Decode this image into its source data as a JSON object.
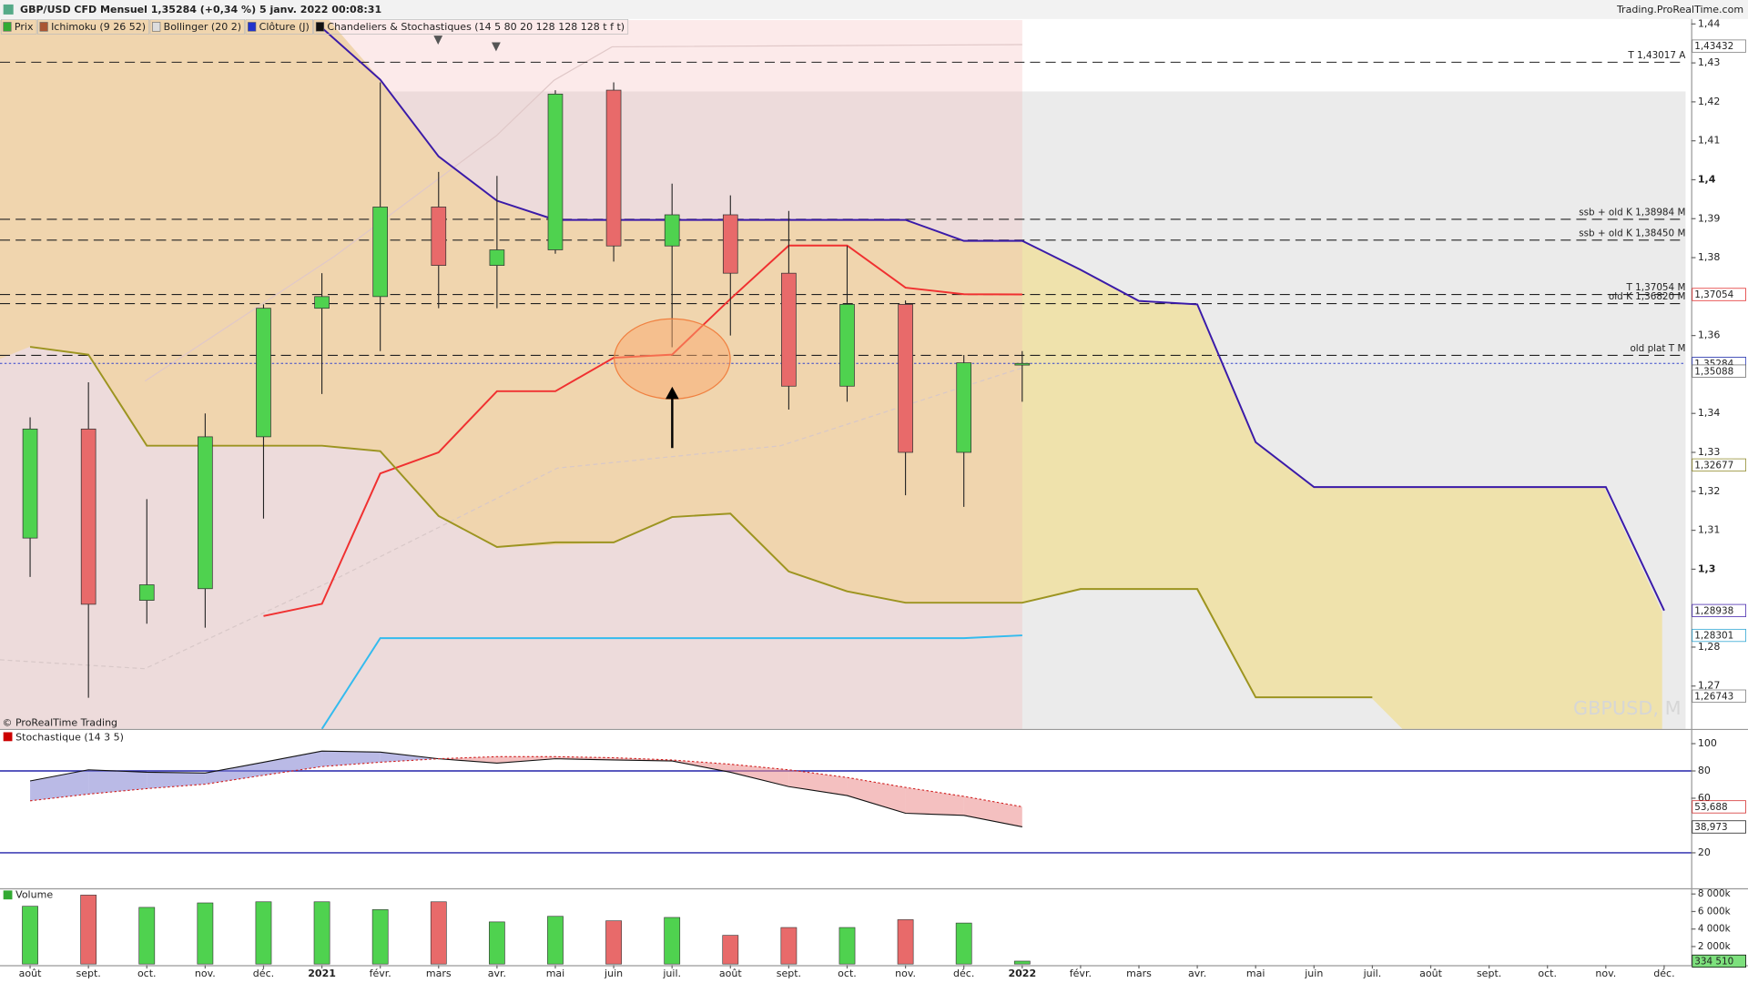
{
  "header": {
    "title": "GBP/USD CFD Mensuel 1,35284 (+0,34 %) 5 janv. 2022 00:08:31",
    "source": "Trading.ProRealTime.com",
    "legend": [
      {
        "label": "Prix",
        "color": "#3a3"
      },
      {
        "label": "Ichimoku (9 26 52)",
        "color": "#a53"
      },
      {
        "label": "Bollinger (20 2)",
        "color": "#ddd"
      },
      {
        "label": "Clôture (J)",
        "color": "#23c"
      },
      {
        "label": "Chandeliers & Stochastiques (14 5 80 20 128 128 128 t f t)",
        "color": "#111"
      }
    ]
  },
  "copyright": "© ProRealTime Trading",
  "watermark": "GBPUSD, M",
  "chart_data": [
    {
      "type": "candlestick",
      "categories": [
        "août",
        "sept.",
        "oct.",
        "nov.",
        "déc.",
        "2021",
        "févr.",
        "mars",
        "avr.",
        "mai",
        "juin",
        "juil.",
        "août",
        "sept.",
        "oct.",
        "nov.",
        "déc.",
        "2022",
        "févr.",
        "mars",
        "avr.",
        "mai",
        "juin",
        "juil.",
        "août",
        "sept.",
        "oct.",
        "nov.",
        "déc."
      ],
      "open": [
        1.308,
        1.336,
        1.292,
        1.295,
        1.334,
        1.367,
        1.37,
        1.393,
        1.378,
        1.382,
        1.423,
        1.383,
        1.391,
        1.376,
        1.347,
        1.368,
        1.33,
        1.3526,
        null,
        null,
        null,
        null,
        null,
        null,
        null,
        null,
        null,
        null,
        null
      ],
      "high": [
        1.339,
        1.348,
        1.318,
        1.34,
        1.368,
        1.376,
        1.425,
        1.402,
        1.401,
        1.423,
        1.425,
        1.399,
        1.396,
        1.392,
        1.383,
        1.369,
        1.355,
        1.356,
        null,
        null,
        null,
        null,
        null,
        null,
        null,
        null,
        null,
        null,
        null
      ],
      "low": [
        1.298,
        1.267,
        1.286,
        1.285,
        1.313,
        1.345,
        1.356,
        1.367,
        1.367,
        1.381,
        1.379,
        1.357,
        1.36,
        1.341,
        1.343,
        1.319,
        1.316,
        1.343,
        null,
        null,
        null,
        null,
        null,
        null,
        null,
        null,
        null,
        null,
        null
      ],
      "close": [
        1.336,
        1.291,
        1.296,
        1.334,
        1.367,
        1.37,
        1.393,
        1.378,
        1.382,
        1.422,
        1.383,
        1.391,
        1.376,
        1.347,
        1.368,
        1.33,
        1.353,
        1.35284,
        null,
        null,
        null,
        null,
        null,
        null,
        null,
        null,
        null,
        null,
        null
      ],
      "up_color": "#4fd24f",
      "down_color": "#e86a6a",
      "series": [
        {
          "color": "#3a1aa8",
          "values": [
            null,
            null,
            null,
            null,
            null,
            1.439,
            1.4257,
            1.406,
            1.3946,
            1.3897,
            1.3897,
            1.3897,
            1.3897,
            1.3897,
            1.3897,
            1.3897,
            1.3843,
            1.3843,
            1.3769,
            1.3689,
            1.368,
            1.3326,
            1.3211,
            1.3211,
            1.3211,
            1.3211,
            1.3211,
            1.3211,
            1.28938
          ]
        },
        {
          "color": "#f03030",
          "values": [
            null,
            null,
            null,
            null,
            1.288,
            1.2911,
            1.3246,
            1.33,
            1.3457,
            1.3457,
            1.3543,
            1.3551,
            1.3694,
            1.3831,
            1.3831,
            1.3723,
            1.3706,
            1.37054,
            null,
            null,
            null,
            null,
            null,
            null,
            null,
            null,
            null,
            null,
            null
          ]
        },
        {
          "color": "#9c9420",
          "values": [
            1.3571,
            1.3551,
            1.3317,
            1.3317,
            1.3317,
            1.3317,
            1.3303,
            1.3137,
            1.3057,
            1.3069,
            1.3069,
            1.3134,
            1.3143,
            1.2994,
            1.2943,
            1.2914,
            1.2914,
            1.2914,
            1.2949,
            1.2949,
            1.2949,
            1.2671,
            1.2671,
            1.2671,
            null,
            null,
            null,
            null,
            null
          ]
        },
        {
          "color": "#33bbee",
          "values": [
            null,
            null,
            null,
            null,
            null,
            1.259,
            1.2823,
            1.2823,
            1.2823,
            1.2823,
            1.2823,
            1.2823,
            1.2823,
            1.2823,
            1.2823,
            1.2823,
            1.2823,
            1.28301,
            null,
            null,
            null,
            null,
            null,
            null,
            null,
            null,
            null,
            null,
            null
          ]
        }
      ],
      "ylim": [
        1.259,
        1.441
      ],
      "yticks": [
        {
          "value": 1.44,
          "label": "1,44"
        },
        {
          "value": 1.43,
          "label": "1,43"
        },
        {
          "value": 1.42,
          "label": "1,42"
        },
        {
          "value": 1.41,
          "label": "1,41"
        },
        {
          "value": 1.4,
          "label": "1,4"
        },
        {
          "value": 1.39,
          "label": "1,39"
        },
        {
          "value": 1.38,
          "label": "1,38"
        },
        {
          "value": 1.36,
          "label": "1,36"
        },
        {
          "value": 1.34,
          "label": "1,34"
        },
        {
          "value": 1.33,
          "label": "1,33"
        },
        {
          "value": 1.32,
          "label": "1,32"
        },
        {
          "value": 1.31,
          "label": "1,31"
        },
        {
          "value": 1.3,
          "label": "1,3"
        },
        {
          "value": 1.28,
          "label": "1,28"
        },
        {
          "value": 1.27,
          "label": "1,27"
        }
      ],
      "levels": [
        {
          "value": 1.43017,
          "label": "T 1,43017 A"
        },
        {
          "value": 1.38984,
          "label": "ssb + old K 1,38984 M"
        },
        {
          "value": 1.3845,
          "label": "ssb + old K 1,38450 M"
        },
        {
          "value": 1.37054,
          "label": "T 1,37054 M"
        },
        {
          "value": 1.3682,
          "label": "old K 1,36820 M"
        },
        {
          "value": 1.3549,
          "label": "old plat T M"
        }
      ],
      "price_line": {
        "value": 1.35284,
        "color": "#3344cc"
      },
      "tags": [
        {
          "value": 1.43432,
          "label": "1,43432",
          "color": "#777"
        },
        {
          "value": 1.37054,
          "label": "1,37054",
          "color": "#e02020"
        },
        {
          "value": 1.35284,
          "label": "1,35284",
          "color": "#000",
          "background": "#f0d000"
        },
        {
          "value": 1.35284,
          "label": "1,35284",
          "color": "#3344cc"
        },
        {
          "value": 1.35088,
          "label": "1,35088",
          "color": "#666"
        },
        {
          "value": 1.32677,
          "label": "1,32677",
          "color": "#8a8420"
        },
        {
          "value": 1.28938,
          "label": "1,28938",
          "color": "#3a1aa8"
        },
        {
          "value": 1.28301,
          "label": "1,28301",
          "color": "#22a0d0"
        },
        {
          "value": 1.26743,
          "label": "1,26743",
          "color": "#777"
        }
      ]
    },
    {
      "type": "stochastic",
      "title": "Stochastique (14 3 5)",
      "series": [
        {
          "color": "#111",
          "values": [
            72.7,
            80.8,
            79,
            78.5,
            86.4,
            94.6,
            93.8,
            88.9,
            85.7,
            88.9,
            88,
            87.3,
            79,
            68.5,
            62,
            49,
            47.4,
            38.973,
            null,
            null,
            null,
            null,
            null,
            null,
            null,
            null,
            null,
            null,
            null
          ]
        },
        {
          "color": "#d02020",
          "dashed": true,
          "values": [
            58.1,
            63,
            67,
            70.3,
            76.8,
            83.2,
            86.4,
            88.9,
            90.5,
            90.5,
            89.7,
            88,
            84.9,
            80.8,
            75.2,
            67.9,
            61.4,
            53.688,
            null,
            null,
            null,
            null,
            null,
            null,
            null,
            null,
            null,
            null,
            null
          ]
        }
      ],
      "ylim": [
        -6,
        110
      ],
      "yticks": [
        100,
        80,
        60,
        20
      ],
      "levels": [
        80,
        20
      ],
      "level_color": "#2222aa",
      "tags": [
        {
          "value": 53.688,
          "label": "53,688",
          "color": "#d02020"
        },
        {
          "value": 38.973,
          "label": "38,973",
          "color": "#111"
        }
      ]
    },
    {
      "type": "volume",
      "title": "Volume",
      "values": [
        6600000,
        7877000,
        6473000,
        6983000,
        7111000,
        7111000,
        6217000,
        7111000,
        4813000,
        5451000,
        4940000,
        5323000,
        3280000,
        4174000,
        4174000,
        5068000,
        4685000,
        334510,
        null,
        null,
        null,
        null,
        null,
        null,
        null,
        null,
        null,
        null,
        null
      ],
      "ylim": [
        0,
        8400000
      ],
      "yticks": [
        {
          "value": 8000000,
          "label": "8 000k"
        },
        {
          "value": 6000000,
          "label": "6 000k"
        },
        {
          "value": 4000000,
          "label": "4 000k"
        },
        {
          "value": 2000000,
          "label": "2 000k"
        }
      ],
      "tags": [
        {
          "value": 334510,
          "label": "334 510",
          "color": "#000",
          "background": "#7de07d"
        }
      ]
    }
  ]
}
